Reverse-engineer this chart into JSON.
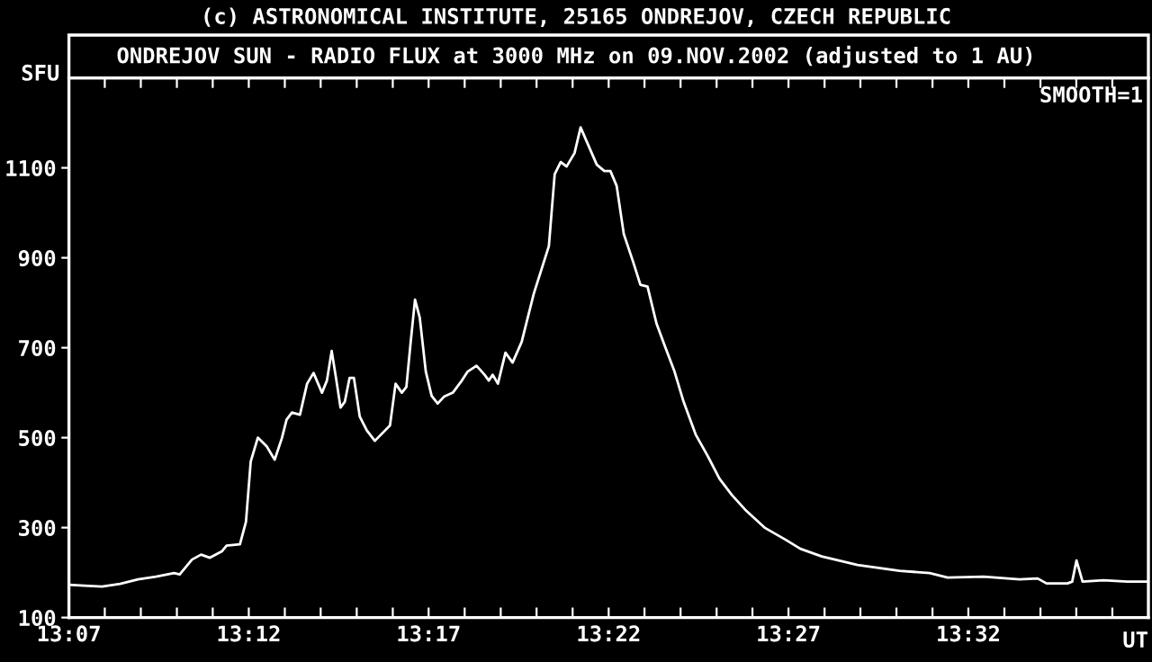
{
  "chart_data": {
    "type": "line",
    "title": "(c) ASTRONOMICAL INSTITUTE, 25165 ONDREJOV, CZECH REPUBLIC",
    "subtitle": "ONDREJOV SUN - RADIO FLUX at 3000 MHz on 09.NOV.2002 (adjusted to 1 AU)",
    "ylabel": "SFU",
    "xlabel": "UT",
    "annotations": [
      "SMOOTH=1"
    ],
    "x": [
      13.1167,
      13.1237,
      13.132,
      13.1404,
      13.1487,
      13.157,
      13.1654,
      13.168,
      13.1737,
      13.1779,
      13.182,
      13.1875,
      13.1897,
      13.1959,
      13.1987,
      13.2009,
      13.2042,
      13.2084,
      13.212,
      13.2154,
      13.2175,
      13.22,
      13.2237,
      13.227,
      13.23,
      13.2339,
      13.2362,
      13.2384,
      13.2404,
      13.2425,
      13.2445,
      13.2467,
      13.2487,
      13.2514,
      13.2547,
      13.2584,
      13.2625,
      13.2654,
      13.268,
      13.2709,
      13.273,
      13.275,
      13.277,
      13.2792,
      13.282,
      13.2847,
      13.2875,
      13.2904,
      13.2945,
      13.2987,
      13.3014,
      13.3055,
      13.3092,
      13.3112,
      13.313,
      13.3154,
      13.3189,
      13.3222,
      13.3264,
      13.332,
      13.339,
      13.3417,
      13.3445,
      13.3472,
      13.3509,
      13.3537,
      13.3564,
      13.3612,
      13.3647,
      13.3675,
      13.3704,
      13.3737,
      13.3779,
      13.3814,
      13.3847,
      13.3889,
      13.393,
      13.3972,
      13.4014,
      13.407,
      13.4125,
      13.418,
      13.4237,
      13.4305,
      13.4389,
      13.4487,
      13.4555,
      13.4654,
      13.482,
      13.5014,
      13.5154,
      13.5237,
      13.5404,
      13.557,
      13.5654,
      13.5695,
      13.5792,
      13.5814,
      13.5834,
      13.5862,
      13.5959,
      13.607,
      13.6167
    ],
    "series": [
      {
        "color": "#ffffff",
        "values": [
          173,
          171,
          169,
          175,
          185,
          191,
          199,
          196,
          229,
          240,
          233,
          247,
          260,
          263,
          313,
          447,
          500,
          480,
          451,
          500,
          540,
          556,
          551,
          620,
          644,
          600,
          627,
          693,
          633,
          567,
          580,
          633,
          633,
          547,
          516,
          493,
          513,
          527,
          620,
          600,
          613,
          713,
          807,
          767,
          647,
          593,
          576,
          591,
          600,
          627,
          647,
          660,
          640,
          627,
          640,
          620,
          689,
          667,
          713,
          820,
          926,
          1086,
          1113,
          1103,
          1133,
          1190,
          1160,
          1107,
          1093,
          1093,
          1060,
          953,
          893,
          840,
          836,
          753,
          700,
          647,
          580,
          507,
          460,
          409,
          373,
          337,
          300,
          273,
          253,
          236,
          217,
          204,
          199,
          189,
          191,
          185,
          187,
          176,
          176,
          180,
          227,
          180,
          183,
          180,
          180
        ]
      }
    ],
    "xlim": [
      13.1167,
      13.6167
    ],
    "xticks": [
      {
        "value": 13.1167,
        "label": "13:07"
      },
      {
        "value": 13.1333,
        "label": null
      },
      {
        "value": 13.15,
        "label": null
      },
      {
        "value": 13.1667,
        "label": null
      },
      {
        "value": 13.1833,
        "label": null
      },
      {
        "value": 13.2,
        "label": "13:12"
      },
      {
        "value": 13.2167,
        "label": null
      },
      {
        "value": 13.2333,
        "label": null
      },
      {
        "value": 13.25,
        "label": null
      },
      {
        "value": 13.2667,
        "label": null
      },
      {
        "value": 13.2833,
        "label": "13:17"
      },
      {
        "value": 13.3,
        "label": null
      },
      {
        "value": 13.3167,
        "label": null
      },
      {
        "value": 13.3333,
        "label": null
      },
      {
        "value": 13.35,
        "label": null
      },
      {
        "value": 13.3667,
        "label": "13:22"
      },
      {
        "value": 13.3833,
        "label": null
      },
      {
        "value": 13.4,
        "label": null
      },
      {
        "value": 13.4167,
        "label": null
      },
      {
        "value": 13.4333,
        "label": null
      },
      {
        "value": 13.45,
        "label": "13:27"
      },
      {
        "value": 13.4667,
        "label": null
      },
      {
        "value": 13.4833,
        "label": null
      },
      {
        "value": 13.5,
        "label": null
      },
      {
        "value": 13.5167,
        "label": null
      },
      {
        "value": 13.5333,
        "label": "13:32"
      },
      {
        "value": 13.55,
        "label": null
      },
      {
        "value": 13.5667,
        "label": null
      },
      {
        "value": 13.5833,
        "label": null
      },
      {
        "value": 13.6,
        "label": null
      }
    ],
    "ylim": [
      100,
      1300
    ],
    "yticks": [
      100,
      300,
      500,
      700,
      900,
      1100
    ],
    "grid": false,
    "marker": "none",
    "line_style": "solid"
  }
}
